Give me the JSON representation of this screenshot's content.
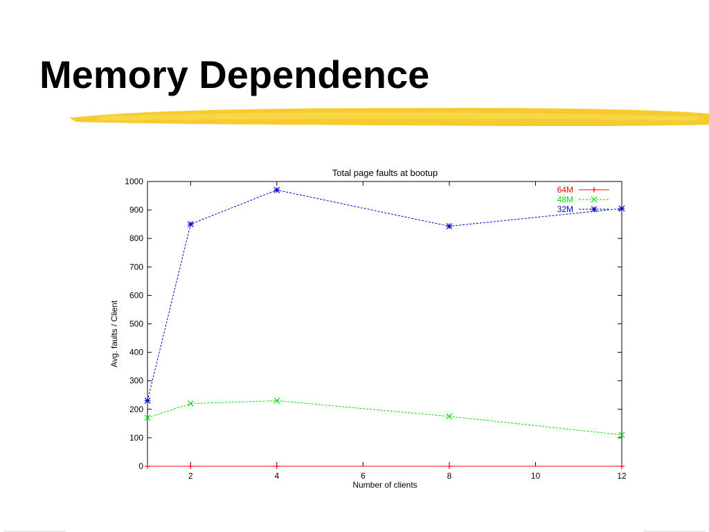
{
  "slide": {
    "title": "Memory Dependence",
    "accent_color": "#f5c518"
  },
  "chart_data": {
    "type": "line",
    "title": "Total page faults at bootup",
    "xlabel": "Number of clients",
    "ylabel": "Avg. faults / Client",
    "xlim": [
      1,
      12
    ],
    "ylim": [
      0,
      1000
    ],
    "xticks": [
      2,
      4,
      6,
      8,
      10,
      12
    ],
    "yticks": [
      0,
      100,
      200,
      300,
      400,
      500,
      600,
      700,
      800,
      900,
      1000
    ],
    "grid": false,
    "legend_position": "top-right",
    "series": [
      {
        "name": "64M",
        "color": "#ff0000",
        "marker": "plus",
        "dash": "solid",
        "x": [
          1,
          2,
          4,
          8,
          12
        ],
        "y": [
          0,
          0,
          0,
          0,
          0
        ]
      },
      {
        "name": "48M",
        "color": "#00dd00",
        "marker": "cross",
        "dash": "dashed",
        "x": [
          1,
          2,
          4,
          8,
          12
        ],
        "y": [
          170,
          220,
          230,
          175,
          110
        ]
      },
      {
        "name": "32M",
        "color": "#0000cc",
        "marker": "star",
        "dash": "dashed",
        "x": [
          1,
          2,
          4,
          8,
          12
        ],
        "y": [
          230,
          850,
          970,
          843,
          905
        ]
      }
    ]
  }
}
